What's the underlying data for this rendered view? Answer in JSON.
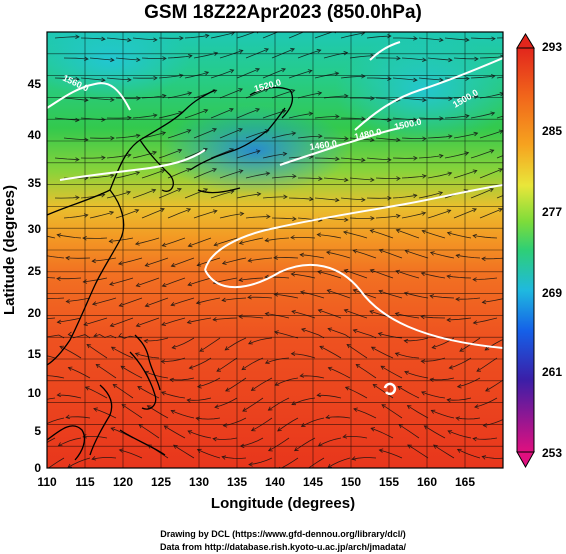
{
  "title": "GSM 18Z22Apr2023 (850.0hPa)",
  "x_axis": {
    "label": "Longitude (degrees)",
    "ticks": [
      "110",
      "115",
      "120",
      "125",
      "130",
      "135",
      "140",
      "145",
      "150",
      "155",
      "160",
      "165"
    ],
    "range": [
      110,
      170
    ]
  },
  "y_axis": {
    "label": "Latitude  (degrees)",
    "ticks": [
      "0",
      "5",
      "10",
      "15",
      "20",
      "25",
      "30",
      "35",
      "40",
      "45"
    ],
    "range": [
      0,
      50
    ]
  },
  "colorbar": {
    "labels": [
      "293",
      "285",
      "277",
      "269",
      "261",
      "253"
    ],
    "range": [
      253,
      293
    ],
    "colors": [
      "#e0107f",
      "#3a1fa8",
      "#1560e8",
      "#1fb9df",
      "#2ecf76",
      "#7ddc3a",
      "#e9e63a",
      "#f6a31f",
      "#f1661b",
      "#e2261c"
    ]
  },
  "map": {
    "background": "temperature field (K) with streamlines, isobars and coastlines",
    "isoline_labels": [
      "1560.0",
      "1520.0",
      "1500.0",
      "1480.0",
      "1500.0",
      "1460.0"
    ]
  },
  "credits": {
    "line1": "Drawing by DCL (https://www.gfd-dennou.org/library/dcl/)",
    "line2": "Data from http://database.rish.kyoto-u.ac.jp/arch/jmadata/"
  }
}
